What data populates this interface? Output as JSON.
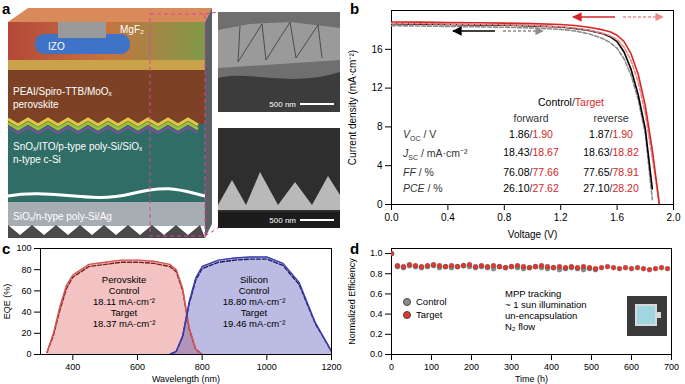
{
  "diagram": {
    "panel": "a",
    "layers": [
      "MgF₂",
      "IZO",
      "PEAI/Spiro-TTB/MoOₓ",
      "perovskite",
      "SnOₓ/ITO/p-type poly-Si/SiOₓ",
      "n-type c-Si",
      "SiOₓ/n-type poly-Si/Ag"
    ],
    "sem_images": [
      {
        "scale_bar": "500 nm"
      },
      {
        "scale_bar": "500 nm"
      }
    ]
  },
  "chart_data": [
    {
      "panel": "b",
      "type": "line",
      "x_label": "Voltage (V)",
      "y_label": "Current density (mA·cm⁻²)",
      "xlim": [
        0,
        2
      ],
      "xticks": [
        {
          "value": 0,
          "label": "0.0"
        },
        0.4,
        0.8,
        1.2,
        1.6,
        {
          "value": 2,
          "label": "2.0"
        }
      ],
      "ylim": [
        0,
        20
      ],
      "yticks": [
        0,
        4,
        8,
        12,
        16
      ],
      "x": [
        0,
        0.2,
        0.4,
        0.6,
        0.8,
        1.0,
        1.2,
        1.3,
        1.4,
        1.5,
        1.55,
        1.6,
        1.65,
        1.7,
        1.75,
        1.8,
        1.85,
        1.9
      ],
      "series": [
        {
          "name": "Control",
          "sweep": "forward",
          "color": "#8c8c8c",
          "line_style": "dashed",
          "values": [
            18.43,
            18.4,
            18.36,
            18.32,
            18.27,
            18.2,
            18.05,
            17.9,
            17.6,
            17.1,
            16.7,
            16.1,
            15.0,
            13.3,
            10.8,
            7.3,
            0.5,
            null
          ]
        },
        {
          "name": "Control",
          "sweep": "reverse",
          "color": "#000000",
          "line_style": "solid",
          "values": [
            18.63,
            18.6,
            18.56,
            18.52,
            18.48,
            18.42,
            18.3,
            18.15,
            17.95,
            17.6,
            17.3,
            16.8,
            15.7,
            13.9,
            11.3,
            7.8,
            1.6,
            null
          ]
        },
        {
          "name": "Target",
          "sweep": "forward",
          "color": "#f08a8a",
          "line_style": "dashed",
          "values": [
            18.67,
            18.64,
            18.6,
            18.56,
            18.52,
            18.45,
            18.32,
            18.2,
            17.98,
            17.65,
            17.4,
            17.0,
            16.2,
            14.8,
            12.6,
            9.4,
            4.8,
            0
          ]
        },
        {
          "name": "Target",
          "sweep": "reverse",
          "color": "#d62728",
          "line_style": "solid",
          "values": [
            18.82,
            18.8,
            18.77,
            18.74,
            18.7,
            18.65,
            18.55,
            18.45,
            18.28,
            18.0,
            17.8,
            17.45,
            16.8,
            15.5,
            13.4,
            10.2,
            5.6,
            0
          ]
        }
      ],
      "table": {
        "header": "Control/Target",
        "columns": [
          "forward",
          "reverse"
        ],
        "rows": [
          {
            "label": "V",
            "sub": "OC",
            "unit": " / V",
            "forward": "1.86/1.90",
            "reverse": "1.87/1.90"
          },
          {
            "label": "J",
            "sub": "SC",
            "unit": " / mA·cm⁻²",
            "forward": "18.43/18.67",
            "reverse": "18.63/18.82"
          },
          {
            "label": "FF",
            "unit": " / %",
            "forward": "76.08/77.66",
            "reverse": "77.65/78.91"
          },
          {
            "label": "PCE",
            "unit": " / %",
            "forward": "26.10/27.62",
            "reverse": "27.10/28.20"
          }
        ]
      }
    },
    {
      "panel": "c",
      "type": "area",
      "x_label": "Wavelength (nm)",
      "y_label": "EQE (%)",
      "xlim": [
        300,
        1200
      ],
      "xticks": [
        400,
        600,
        800,
        1000,
        1200
      ],
      "ylim": [
        0,
        100
      ],
      "yticks": [
        0,
        20,
        40,
        60,
        80,
        100
      ],
      "x": [
        320,
        340,
        360,
        380,
        400,
        450,
        500,
        550,
        600,
        650,
        700,
        720,
        740,
        760,
        780,
        800,
        850,
        900,
        950,
        1000,
        1050,
        1100,
        1150,
        1200
      ],
      "series": [
        {
          "group": "Perovskite",
          "name": "Control",
          "jsc_label": "18.11 mA·cm⁻²",
          "type": "line",
          "line_style": "dashed",
          "color": "#7a1f1f",
          "values": [
            2,
            18,
            42,
            62,
            73,
            83,
            85,
            87,
            87,
            86,
            83,
            78,
            60,
            24,
            5,
            0,
            null,
            null,
            null,
            null,
            null,
            null,
            null,
            null
          ]
        },
        {
          "group": "Perovskite",
          "name": "Target",
          "jsc_label": "18.37 mA·cm⁻²",
          "type": "area",
          "line_style": "solid",
          "color": "#d9534f",
          "values": [
            2,
            20,
            45,
            65,
            75,
            85,
            87,
            89,
            89,
            88,
            85,
            80,
            62,
            25,
            5,
            0,
            null,
            null,
            null,
            null,
            null,
            null,
            null,
            null
          ]
        },
        {
          "group": "Silicon",
          "name": "Control",
          "jsc_label": "18.80 mA·cm⁻²",
          "type": "line",
          "line_style": "dashed",
          "color": "#1a1a5e",
          "values": [
            null,
            null,
            null,
            null,
            null,
            null,
            null,
            null,
            null,
            null,
            0,
            3,
            17,
            48,
            70,
            81,
            87,
            89,
            90,
            90,
            84,
            66,
            29,
            3
          ]
        },
        {
          "group": "Silicon",
          "name": "Target",
          "jsc_label": "19.46 mA·cm⁻²",
          "type": "area",
          "line_style": "solid",
          "color": "#3d3db0",
          "values": [
            null,
            null,
            null,
            null,
            null,
            null,
            null,
            null,
            null,
            null,
            0,
            3,
            18,
            50,
            72,
            83,
            89,
            91,
            92,
            92,
            86,
            68,
            30,
            3
          ]
        }
      ]
    },
    {
      "panel": "d",
      "type": "scatter",
      "x_label": "Time (h)",
      "y_label": "Normalized Efficiency",
      "xlim": [
        0,
        700
      ],
      "xticks": [
        0,
        100,
        200,
        300,
        400,
        500,
        600,
        700
      ],
      "ylim": [
        0,
        1.05
      ],
      "yticks": [
        {
          "value": 0,
          "label": "0.0"
        },
        0.2,
        0.4,
        0.6,
        0.8,
        {
          "value": 1,
          "label": "1.0"
        }
      ],
      "legend": "bottom-left",
      "series": [
        {
          "name": "Control",
          "color": "#8c8c8c",
          "marker": "circle",
          "x": [
            0,
            15,
            30,
            45,
            60,
            75,
            90,
            105,
            120,
            135,
            150,
            165,
            180,
            195,
            210,
            225,
            240,
            255,
            270,
            285,
            300,
            315,
            330,
            345,
            360,
            375,
            390,
            405,
            420,
            435,
            450,
            465,
            480,
            495,
            510
          ],
          "values": [
            1.0,
            0.87,
            0.86,
            0.88,
            0.87,
            0.86,
            0.87,
            0.88,
            0.86,
            0.87,
            0.86,
            0.87,
            0.88,
            0.87,
            0.86,
            0.87,
            0.86,
            0.85,
            0.87,
            0.86,
            0.87,
            0.86,
            0.85,
            0.86,
            0.87,
            0.86,
            0.85,
            0.86,
            0.84,
            0.85,
            0.86,
            0.85,
            0.84,
            0.85,
            0.84
          ]
        },
        {
          "name": "Target",
          "color": "#e8352b",
          "marker": "circle",
          "x": [
            0,
            15,
            30,
            45,
            60,
            75,
            90,
            105,
            120,
            135,
            150,
            165,
            180,
            195,
            210,
            225,
            240,
            255,
            270,
            285,
            300,
            315,
            330,
            345,
            360,
            375,
            390,
            405,
            420,
            435,
            450,
            465,
            480,
            495,
            510,
            525,
            540,
            555,
            570,
            585,
            600,
            615,
            630,
            645,
            660,
            675,
            690
          ],
          "values": [
            1.0,
            0.88,
            0.87,
            0.89,
            0.88,
            0.87,
            0.88,
            0.89,
            0.88,
            0.87,
            0.88,
            0.87,
            0.88,
            0.89,
            0.87,
            0.88,
            0.87,
            0.88,
            0.87,
            0.86,
            0.87,
            0.88,
            0.87,
            0.86,
            0.87,
            0.88,
            0.87,
            0.86,
            0.87,
            0.86,
            0.87,
            0.86,
            0.87,
            0.86,
            0.85,
            0.86,
            0.87,
            0.86,
            0.85,
            0.86,
            0.85,
            0.86,
            0.85,
            0.84,
            0.85,
            0.86,
            0.85
          ]
        }
      ],
      "annotation": [
        "MPP tracking",
        "~ 1 sun illumination",
        "un-encapsulation",
        "N₂ flow"
      ]
    }
  ]
}
